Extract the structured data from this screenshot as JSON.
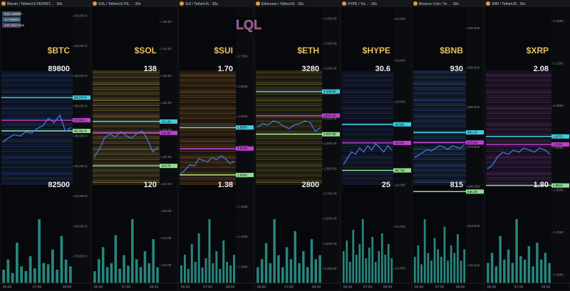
{
  "logo": "LQL",
  "legend": {
    "items": [
      {
        "label": "5min MMMA",
        "color": "#5a6f8a"
      },
      {
        "label": "4H MMMA",
        "color": "#3d7fa8"
      },
      {
        "label": "24H Max Pain",
        "color": "#6b5a8a"
      }
    ]
  },
  "panels": [
    {
      "header": "Bitcoin / TetherUS PERPET... · 30s",
      "ticker": "$BTC",
      "upper": "89800",
      "lower": "82500",
      "ylim": [
        76500,
        94500
      ],
      "ticks": [
        {
          "value": 94000,
          "label": "94,000.0"
        },
        {
          "value": 92000,
          "label": "92,000.0"
        },
        {
          "value": 90000,
          "label": "90,000.0"
        },
        {
          "value": 88000,
          "label": "88,000.0"
        },
        {
          "value": 86000,
          "label": "86,000.0"
        },
        {
          "value": 84000,
          "label": "84,000.0"
        },
        {
          "value": 82000,
          "label": "82,000.0"
        },
        {
          "value": 80000,
          "label": "80,000.0"
        },
        {
          "value": 78000,
          "label": "78,000.0"
        }
      ],
      "levels": [
        {
          "value": 88570.6,
          "label": "88,570.6",
          "color": "#3fd0e0"
        },
        {
          "value": 87066.1,
          "label": "87,066.1",
          "color": "#c040d0"
        },
        {
          "value": 86351.5,
          "label": "86,351.5",
          "color": "#8fe08f"
        }
      ],
      "price": [
        85600,
        85900,
        86100,
        86000,
        86300,
        86200,
        86500,
        86700,
        87200,
        86900,
        87400,
        86300,
        86600
      ],
      "volume": [
        20,
        35,
        15,
        60,
        25,
        18,
        40,
        22,
        95,
        30,
        28,
        50,
        20,
        70,
        35,
        25
      ],
      "times": [
        "05:00",
        "07:00",
        "09:00"
      ]
    },
    {
      "header": "SOL / TetherUS PE... · 30s",
      "ticker": "$SOL",
      "upper": "138",
      "lower": "120",
      "ylim": [
        108,
        148
      ],
      "ticks": [
        {
          "value": 146,
          "label": "146.00"
        },
        {
          "value": 142,
          "label": "142.00"
        },
        {
          "value": 138,
          "label": "138.00"
        },
        {
          "value": 134,
          "label": "134.00"
        },
        {
          "value": 130,
          "label": "130.00"
        },
        {
          "value": 126,
          "label": "126.00"
        },
        {
          "value": 122,
          "label": "122.00"
        },
        {
          "value": 118,
          "label": "118.00"
        },
        {
          "value": 114,
          "label": "114.00"
        },
        {
          "value": 110,
          "label": "110.00"
        }
      ],
      "levels": [
        {
          "value": 131.28,
          "label": "131.28",
          "color": "#3fd0e0"
        },
        {
          "value": 129.6,
          "label": "129.60",
          "color": "#c040d0"
        },
        {
          "value": 124.72,
          "label": "124.72",
          "color": "#8fe08f"
        }
      ],
      "price": [
        126.0,
        127.2,
        128.9,
        129.4,
        129.0,
        129.8,
        129.2,
        128.8,
        129.5,
        129.9,
        128.6,
        126.8,
        127.5
      ],
      "volume": [
        15,
        30,
        45,
        20,
        25,
        60,
        18,
        35,
        22,
        80,
        30,
        20,
        40,
        25,
        55,
        20
      ],
      "times": [
        "05:00",
        "07:00",
        "09:00"
      ]
    },
    {
      "header": "SUI / TetherUS · 30s",
      "ticker": "$SUI",
      "upper": "1.70",
      "lower": "1.38",
      "ylim": [
        1.33,
        1.78
      ],
      "ticks": [
        {
          "value": 1.75,
          "label": "1.7500"
        },
        {
          "value": 1.7,
          "label": "1.7000"
        },
        {
          "value": 1.65,
          "label": "1.6500"
        },
        {
          "value": 1.6,
          "label": "1.6000"
        },
        {
          "value": 1.55,
          "label": "1.5500"
        },
        {
          "value": 1.5,
          "label": "1.5000"
        },
        {
          "value": 1.45,
          "label": "1.4500"
        },
        {
          "value": 1.4,
          "label": "1.4000"
        },
        {
          "value": 1.35,
          "label": "1.3500"
        }
      ],
      "levels": [
        {
          "value": 1.582,
          "label": "1.5820",
          "color": "#3fd0e0"
        },
        {
          "value": 1.547,
          "label": "1.5470",
          "color": "#c040d0"
        },
        {
          "value": 1.503,
          "label": "1.5030",
          "color": "#8fe08f"
        }
      ],
      "price": [
        1.505,
        1.512,
        1.52,
        1.518,
        1.53,
        1.527,
        1.525,
        1.532,
        1.528,
        1.535,
        1.53,
        1.522,
        1.526
      ],
      "volume": [
        25,
        40,
        20,
        55,
        30,
        70,
        22,
        35,
        90,
        28,
        45,
        20,
        60,
        30,
        25,
        40
      ],
      "times": [
        "05:00",
        "07:00",
        "09:00"
      ]
    },
    {
      "header": "Ethereum / TetherUS · 30s",
      "ticker": "$ETH",
      "upper": "3280",
      "lower": "2800",
      "ylim": [
        2360,
        3440
      ],
      "ticks": [
        {
          "value": 3400,
          "label": "3,400.00"
        },
        {
          "value": 3300,
          "label": "3,300.00"
        },
        {
          "value": 3200,
          "label": "3,200.00"
        },
        {
          "value": 3100,
          "label": "3,100.00"
        },
        {
          "value": 3000,
          "label": "3,000.00"
        },
        {
          "value": 2900,
          "label": "2,900.00"
        },
        {
          "value": 2800,
          "label": "2,800.00"
        },
        {
          "value": 2700,
          "label": "2,700.00"
        },
        {
          "value": 2600,
          "label": "2,600.00"
        },
        {
          "value": 2500,
          "label": "2,500.00"
        },
        {
          "value": 2400,
          "label": "2,400.00"
        }
      ],
      "levels": [
        {
          "value": 3108.5,
          "label": "3,108.50",
          "color": "#3fd0e0"
        },
        {
          "value": 3012.4,
          "label": "3,012.40",
          "color": "#c040d0"
        },
        {
          "value": 2937.8,
          "label": "2,937.80",
          "color": "#8fe08f"
        }
      ],
      "price": [
        2965,
        2980,
        2975,
        2990,
        2985,
        2970,
        2960,
        2975,
        2980,
        2990,
        2985,
        2950,
        2965
      ],
      "volume": [
        20,
        30,
        50,
        25,
        80,
        35,
        20,
        45,
        30,
        65,
        25,
        40,
        20,
        55,
        30,
        35
      ],
      "times": [
        "05:00",
        "07:00",
        "09:00"
      ]
    },
    {
      "header": "HYPE / Tet... · 30s",
      "ticker": "$HYPE",
      "upper": "30.6",
      "lower": "25",
      "ylim": [
        21.5,
        34.5
      ],
      "ticks": [
        {
          "value": 34,
          "label": "34.000"
        },
        {
          "value": 32,
          "label": "32.000"
        },
        {
          "value": 30,
          "label": "30.000"
        },
        {
          "value": 28,
          "label": "28.000"
        },
        {
          "value": 26,
          "label": "26.000"
        },
        {
          "value": 24,
          "label": "24.000"
        },
        {
          "value": 22,
          "label": "22.000"
        }
      ],
      "levels": [
        {
          "value": 28.931,
          "label": "28.931",
          "color": "#3fd0e0"
        },
        {
          "value": 28.037,
          "label": "28.037",
          "color": "#c040d0"
        },
        {
          "value": 26.718,
          "label": "26.718",
          "color": "#8fe08f"
        }
      ],
      "price": [
        27.0,
        27.3,
        27.6,
        27.5,
        27.8,
        27.6,
        27.9,
        27.7,
        28.0,
        27.8,
        27.6,
        27.9,
        27.7
      ],
      "volume": [
        45,
        60,
        30,
        75,
        40,
        55,
        90,
        35,
        50,
        65,
        30,
        45,
        70,
        40,
        55,
        35
      ],
      "times": [
        "05:00",
        "07:00",
        "09:00"
      ]
    },
    {
      "header": "Binance Coin / Te... · 30s",
      "ticker": "$BNB",
      "upper": "930",
      "lower": "815",
      "ylim": [
        770,
        975
      ],
      "ticks": [
        {
          "value": 960,
          "label": "960.000"
        },
        {
          "value": 930,
          "label": "930.000"
        },
        {
          "value": 900,
          "label": "900.000"
        },
        {
          "value": 870,
          "label": "870.000"
        },
        {
          "value": 840,
          "label": "840.000"
        },
        {
          "value": 810,
          "label": "810.000"
        },
        {
          "value": 780,
          "label": "780.000"
        }
      ],
      "levels": [
        {
          "value": 881.1,
          "label": "881.10",
          "color": "#3fd0e0"
        },
        {
          "value": 873.4,
          "label": "873.40",
          "color": "#c040d0"
        },
        {
          "value": 836.2,
          "label": "836.20",
          "color": "#8fe08f"
        }
      ],
      "price": [
        862,
        864,
        866,
        868,
        867,
        869,
        871,
        870,
        868,
        871,
        870,
        869,
        872
      ],
      "volume": [
        35,
        50,
        25,
        85,
        40,
        30,
        60,
        45,
        35,
        75,
        30,
        50,
        40,
        65,
        30,
        45
      ],
      "times": [
        "05:00",
        "07:00",
        "09:00"
      ]
    },
    {
      "header": "XRP / TetherUS · 30s",
      "ticker": "$XRP",
      "upper": "2.08",
      "lower": "1.80",
      "ylim": [
        1.64,
        2.28
      ],
      "ticks": [
        {
          "value": 2.25,
          "label": "2.2500"
        },
        {
          "value": 2.15,
          "label": "2.1500"
        },
        {
          "value": 2.05,
          "label": "2.0500"
        },
        {
          "value": 1.95,
          "label": "1.9500"
        },
        {
          "value": 1.85,
          "label": "1.8500"
        },
        {
          "value": 1.75,
          "label": "1.7500"
        },
        {
          "value": 1.65,
          "label": "1.6500"
        }
      ],
      "levels": [
        {
          "value": 1.9772,
          "label": "1.9772",
          "color": "#3fd0e0"
        },
        {
          "value": 1.9584,
          "label": "1.9584",
          "color": "#c040d0"
        },
        {
          "value": 1.8612,
          "label": "1.8612",
          "color": "#8fe08f"
        }
      ],
      "price": [
        1.9,
        1.91,
        1.93,
        1.94,
        1.935,
        1.945,
        1.94,
        1.95,
        1.945,
        1.94,
        1.95,
        1.945,
        1.935
      ],
      "volume": [
        30,
        45,
        25,
        70,
        35,
        50,
        30,
        95,
        40,
        35,
        55,
        25,
        60,
        35,
        45,
        30
      ],
      "times": [
        "05:00",
        "07:00",
        "09:00"
      ]
    }
  ]
}
